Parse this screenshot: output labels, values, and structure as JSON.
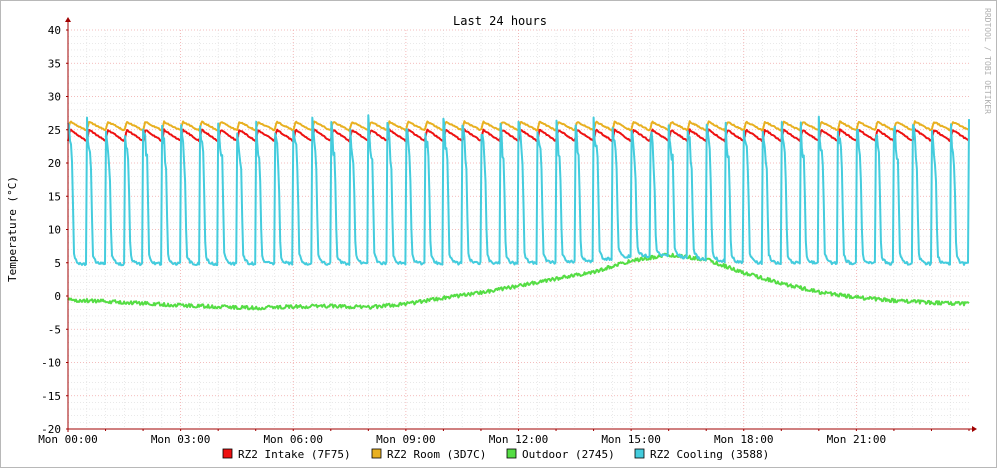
{
  "chart_data": {
    "type": "line",
    "title": "Last 24 hours",
    "ylabel": "Temperature (°C)",
    "xlabel": "",
    "watermark": "RRDTOOL / TOBI OETIKER",
    "ylim": [
      -20,
      40
    ],
    "yticks": [
      40,
      35,
      30,
      25,
      20,
      15,
      10,
      5,
      0,
      -5,
      -10,
      -15,
      -20
    ],
    "xlim": [
      "Mon 00:00",
      "Tue 00:00"
    ],
    "xticks": [
      "Mon 00:00",
      "Mon 03:00",
      "Mon 06:00",
      "Mon 09:00",
      "Mon 12:00",
      "Mon 15:00",
      "Mon 18:00",
      "Mon 21:00"
    ],
    "grid": true,
    "legend_position": "bottom",
    "colors": {
      "background": "#ffffff",
      "major_grid": "#f0a8a8",
      "minor_grid": "#dcdcdc",
      "axis": "#a00000"
    },
    "series": [
      {
        "name": "RZ2 Intake (7F75)",
        "color": "#ee1111",
        "pattern": "sawtooth",
        "cycles": 48,
        "high": 25.0,
        "low": 23.3
      },
      {
        "name": "RZ2 Room (3D7C)",
        "color": "#e8b020",
        "pattern": "sawtooth",
        "cycles": 48,
        "high": 26.2,
        "low": 24.9
      },
      {
        "name": "Outdoor (2745)",
        "color": "#55dd44",
        "pattern": "smooth",
        "x_hours": [
          0,
          1,
          2,
          3,
          4,
          5,
          6,
          7,
          8,
          9,
          10,
          11,
          12,
          13,
          14,
          15,
          16,
          17,
          18,
          19,
          20,
          21,
          22,
          23,
          24
        ],
        "values": [
          -0.6,
          -0.8,
          -1.1,
          -1.4,
          -1.6,
          -1.8,
          -1.6,
          -1.5,
          -1.7,
          -1.2,
          -0.3,
          0.5,
          1.5,
          2.6,
          3.6,
          5.3,
          6.2,
          5.5,
          3.5,
          1.9,
          0.6,
          -0.2,
          -0.7,
          -1.0,
          -1.2
        ]
      },
      {
        "name": "RZ2 Cooling (3588)",
        "color": "#44ccdd",
        "pattern": "pulse",
        "cycles": 48,
        "high": 26.0,
        "low": 4.8,
        "floor_by_hour": {
          "x_hours": [
            0,
            12,
            14,
            15,
            16,
            18,
            24
          ],
          "values": [
            4.8,
            4.9,
            5.2,
            6.0,
            6.0,
            5.0,
            4.8
          ]
        }
      }
    ]
  }
}
